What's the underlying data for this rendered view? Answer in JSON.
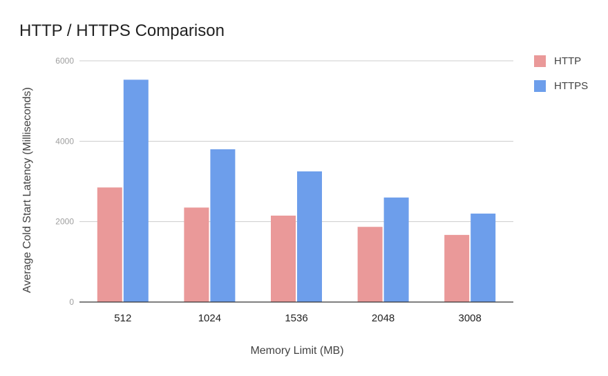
{
  "chart_data": {
    "type": "bar",
    "title": "HTTP / HTTPS Comparison",
    "xlabel": "Memory Limit (MB)",
    "ylabel": "Average Cold Start Latency (Milliseconds)",
    "categories": [
      "512",
      "1024",
      "1536",
      "2048",
      "3008"
    ],
    "series": [
      {
        "name": "HTTP",
        "color": "#ea9999",
        "values": [
          2850,
          2350,
          2150,
          1870,
          1670
        ]
      },
      {
        "name": "HTTPS",
        "color": "#6d9eeb",
        "values": [
          5530,
          3800,
          3250,
          2600,
          2200
        ]
      }
    ],
    "ylim": [
      0,
      6000
    ],
    "yticks": [
      "0",
      "2000",
      "4000",
      "6000"
    ],
    "ytick_values": [
      0,
      2000,
      4000,
      6000
    ],
    "grid": true,
    "legend_position": "right"
  }
}
